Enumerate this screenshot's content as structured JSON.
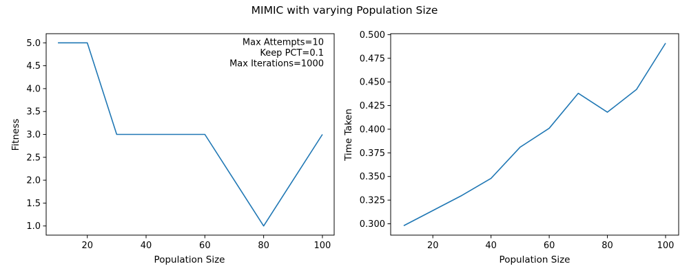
{
  "figure": {
    "suptitle": "MIMIC with varying Population Size"
  },
  "chart_data": [
    {
      "type": "line",
      "xlabel": "Population Size",
      "ylabel": "Fitness",
      "xlim": [
        6,
        104
      ],
      "ylim": [
        0.8,
        5.2
      ],
      "xticks": [
        20,
        40,
        60,
        80,
        100
      ],
      "xtick_labels": [
        "20",
        "40",
        "60",
        "80",
        "100"
      ],
      "yticks": [
        1.0,
        1.5,
        2.0,
        2.5,
        3.0,
        3.5,
        4.0,
        4.5,
        5.0
      ],
      "ytick_labels": [
        "1.0",
        "1.5",
        "2.0",
        "2.5",
        "3.0",
        "3.5",
        "4.0",
        "4.5",
        "5.0"
      ],
      "grid": false,
      "line_color": "#1f77b4",
      "x": [
        10,
        20,
        30,
        40,
        50,
        60,
        70,
        80,
        90,
        100
      ],
      "y": [
        5,
        5,
        3,
        3,
        3,
        3,
        2,
        1,
        2,
        3
      ],
      "annotation": [
        "Max Attempts=10",
        "Keep PCT=0.1",
        "Max Iterations=1000"
      ]
    },
    {
      "type": "line",
      "xlabel": "Population Size",
      "ylabel": "Time Taken",
      "xlim": [
        5.5,
        104.5
      ],
      "ylim": [
        0.288,
        0.501
      ],
      "xticks": [
        20,
        40,
        60,
        80,
        100
      ],
      "xtick_labels": [
        "20",
        "40",
        "60",
        "80",
        "100"
      ],
      "yticks": [
        0.3,
        0.325,
        0.35,
        0.375,
        0.4,
        0.425,
        0.45,
        0.475,
        0.5
      ],
      "ytick_labels": [
        "0.300",
        "0.325",
        "0.350",
        "0.375",
        "0.400",
        "0.425",
        "0.450",
        "0.475",
        "0.500"
      ],
      "grid": false,
      "line_color": "#1f77b4",
      "x": [
        10,
        20,
        30,
        40,
        50,
        60,
        70,
        80,
        90,
        100
      ],
      "y": [
        0.298,
        0.314,
        0.33,
        0.348,
        0.381,
        0.401,
        0.438,
        0.418,
        0.442,
        0.491
      ]
    }
  ]
}
